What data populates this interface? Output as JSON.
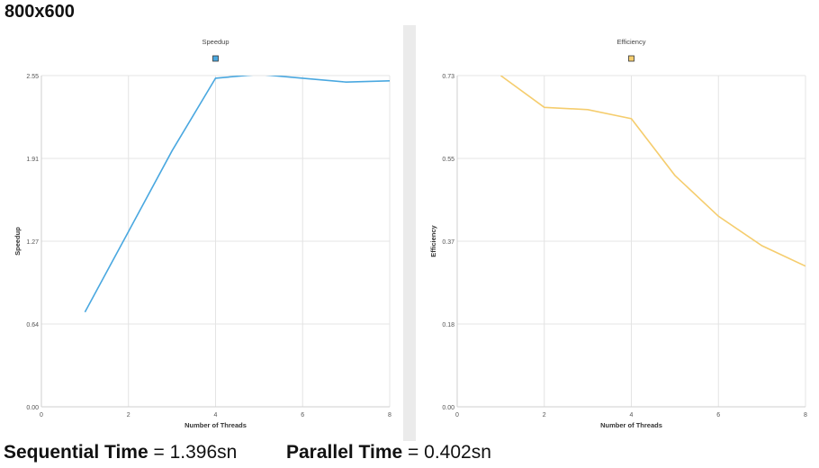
{
  "header": {
    "resolution": "800x600"
  },
  "footer": {
    "sequential_label": "Sequential Time",
    "sequential_value": "= 1.396sn",
    "parallel_label": "Parallel Time",
    "parallel_value": "= 0.402sn"
  },
  "chart_data": [
    {
      "type": "line",
      "title": "Speedup",
      "xlabel": "Number of Threads",
      "ylabel": "Speedup",
      "xlim": [
        0,
        8
      ],
      "ylim": [
        0,
        2.55
      ],
      "xticks": [
        "0",
        "2",
        "4",
        "6",
        "8"
      ],
      "yticks": [
        "0.00",
        "0.64",
        "1.27",
        "1.91",
        "2.55"
      ],
      "grid": true,
      "legend": "top-center",
      "series": [
        {
          "color": "#4aa8e0",
          "x": [
            1,
            2,
            3,
            4,
            5,
            6,
            7,
            8
          ],
          "y": [
            0.73,
            1.35,
            1.97,
            2.53,
            2.56,
            2.53,
            2.5,
            2.51
          ]
        }
      ]
    },
    {
      "type": "line",
      "title": "Efficiency",
      "xlabel": "Number of Threads",
      "ylabel": "Efficiency",
      "xlim": [
        0,
        8
      ],
      "ylim": [
        0,
        0.73
      ],
      "xticks": [
        "0",
        "2",
        "4",
        "6",
        "8"
      ],
      "yticks": [
        "0.00",
        "0.18",
        "0.37",
        "0.55",
        "0.73"
      ],
      "grid": true,
      "legend": "top-center",
      "series": [
        {
          "color": "#f5cd6e",
          "x": [
            1,
            2,
            3,
            4,
            5,
            6,
            7,
            8
          ],
          "y": [
            0.73,
            0.66,
            0.655,
            0.635,
            0.51,
            0.42,
            0.355,
            0.31
          ]
        }
      ]
    }
  ]
}
